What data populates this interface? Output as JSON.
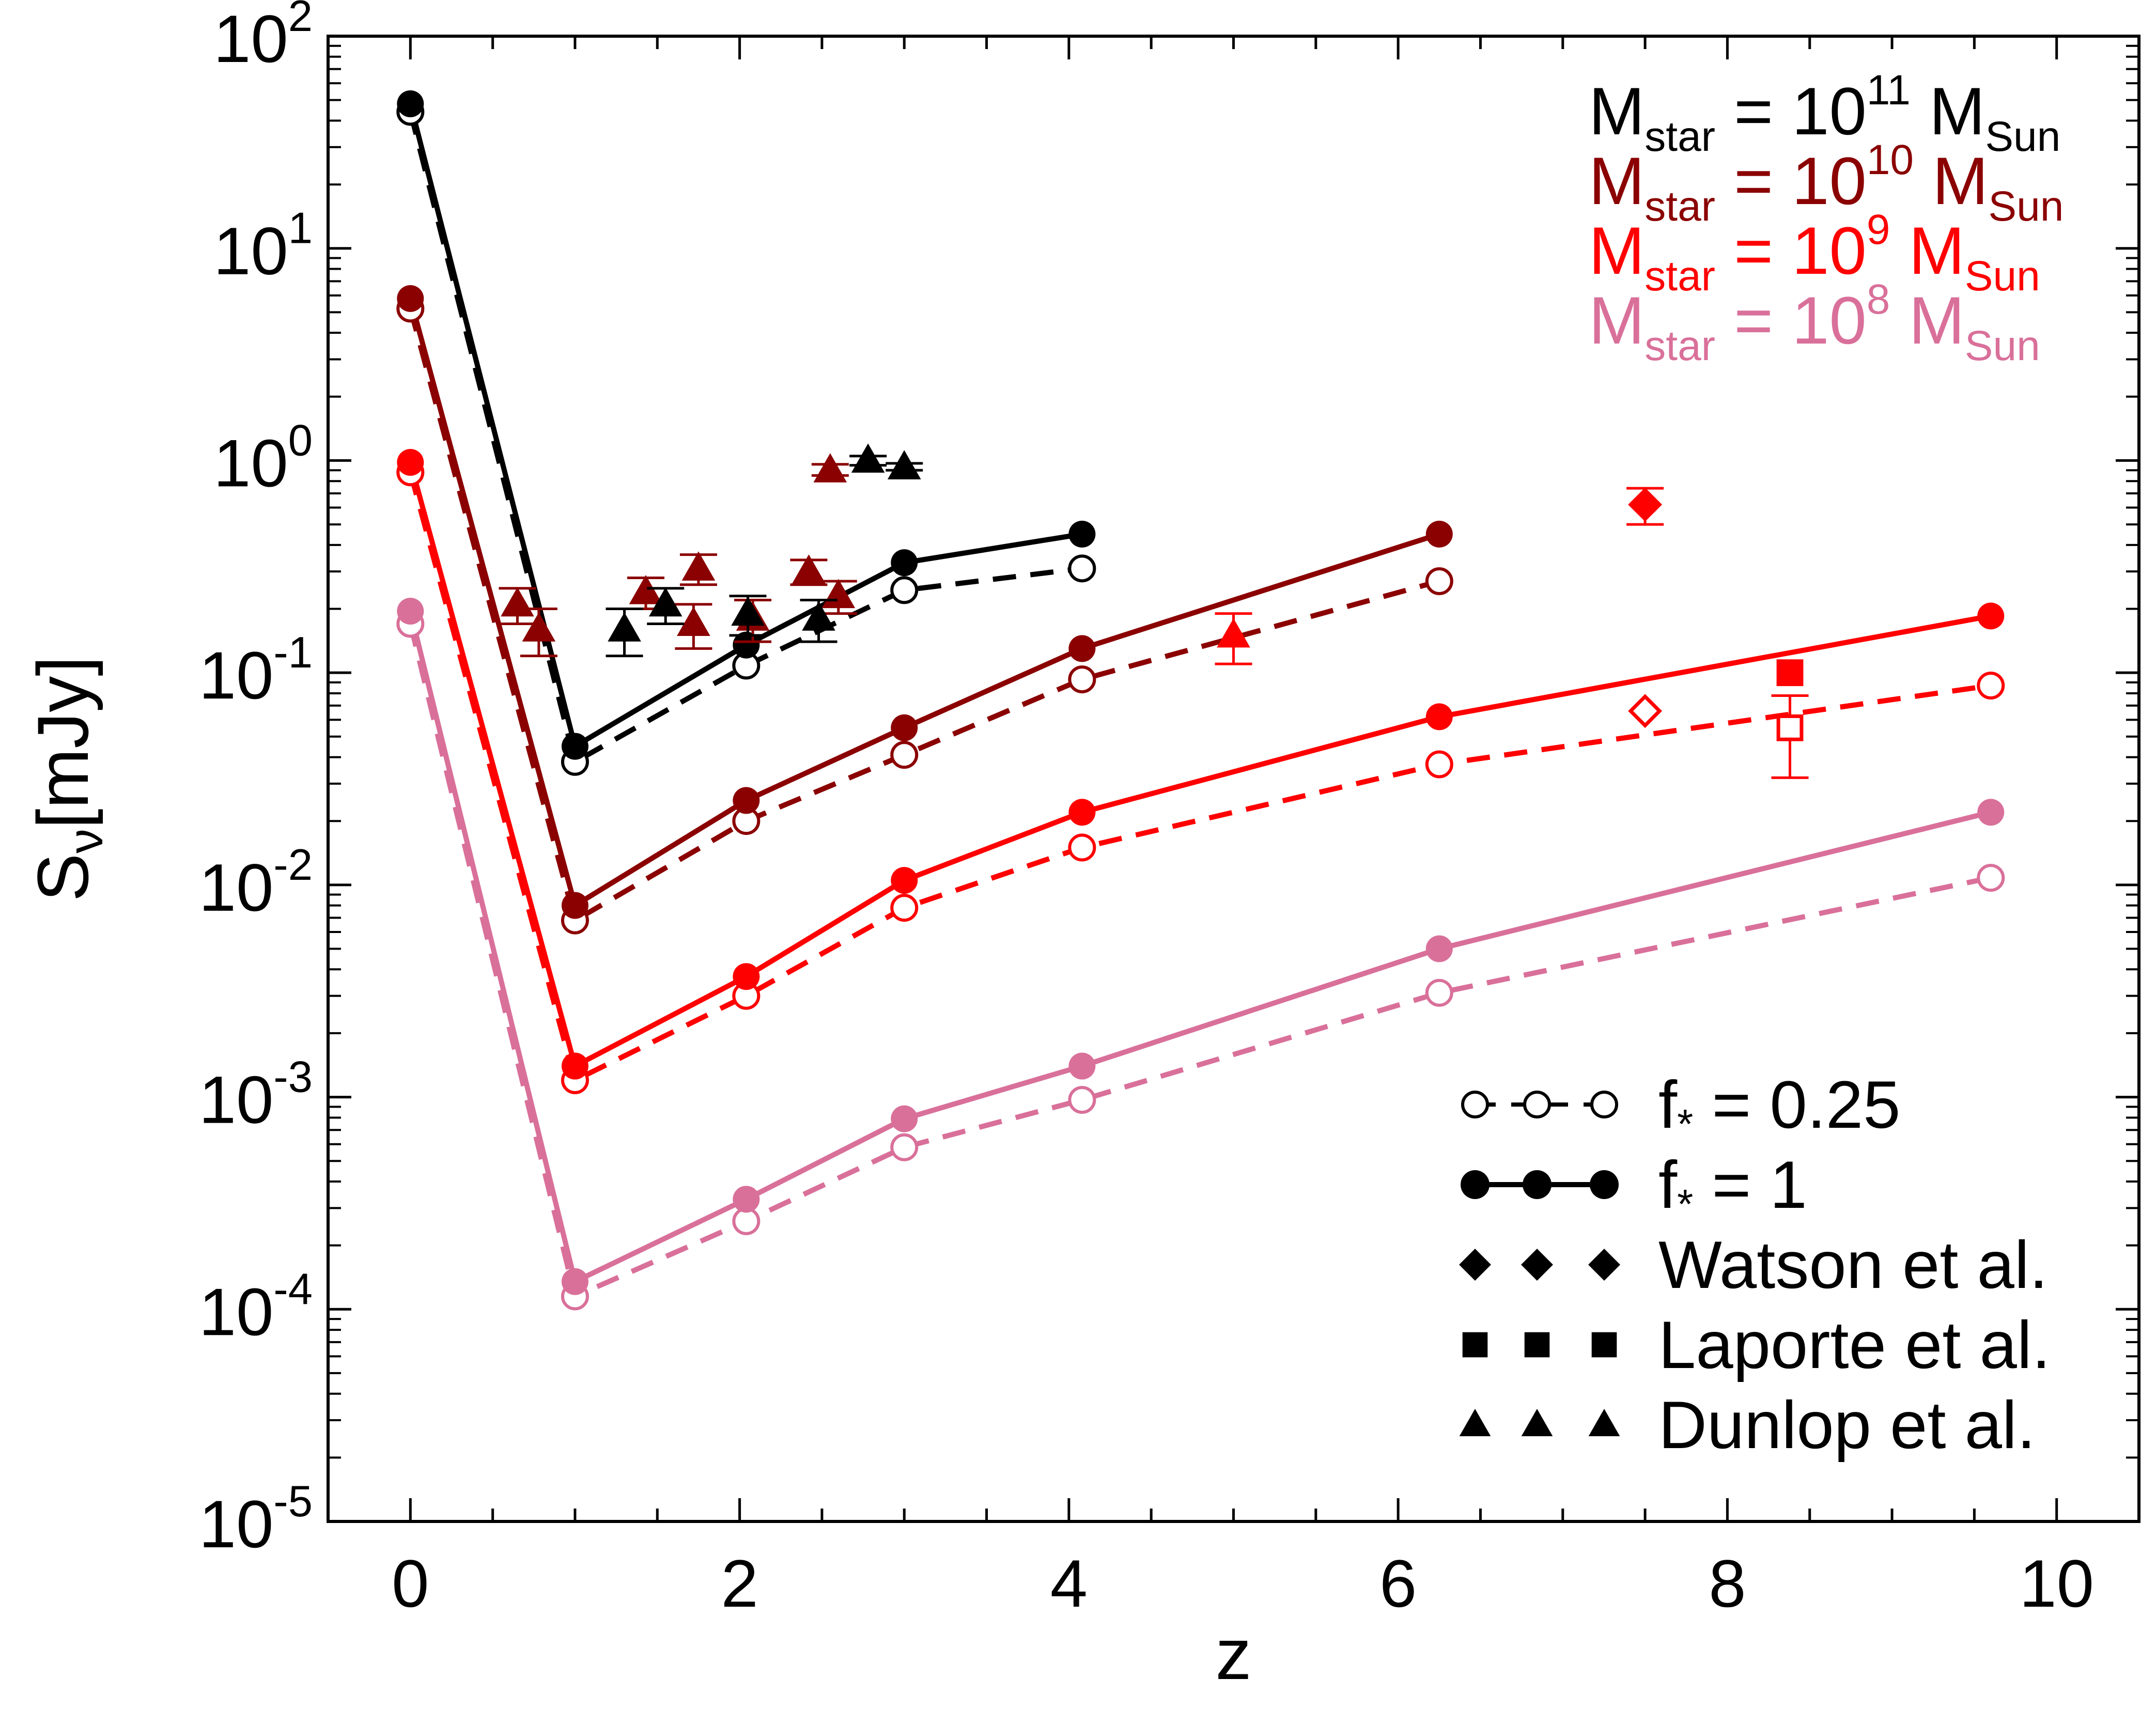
{
  "chart_data": {
    "type": "line",
    "xlabel": "z",
    "ylabel": {
      "main": "S",
      "sub": "ν",
      "rest": "[mJy]"
    },
    "xlim": [
      -0.5,
      10.5
    ],
    "ylim": [
      1e-05,
      100
    ],
    "yscale": "log",
    "x_ticks": [
      0,
      2,
      4,
      6,
      8,
      10
    ],
    "y_ticks": [
      {
        "value": 100,
        "base": "10",
        "exp": "2"
      },
      {
        "value": 10,
        "base": "10",
        "exp": "1"
      },
      {
        "value": 1,
        "base": "10",
        "exp": "0"
      },
      {
        "value": 0.1,
        "base": "10",
        "exp": "-1"
      },
      {
        "value": 0.01,
        "base": "10",
        "exp": "-2"
      },
      {
        "value": 0.001,
        "base": "10",
        "exp": "-3"
      },
      {
        "value": 0.0001,
        "base": "10",
        "exp": "-4"
      },
      {
        "value": 1e-05,
        "base": "10",
        "exp": "-5"
      }
    ],
    "mass_series": [
      {
        "id": "m11",
        "color": "#000000",
        "label": {
          "M": "M",
          "sub1": "star",
          "eq": " = 10",
          "exp": "11",
          "M2": " M",
          "sub2": "Sun"
        },
        "x": [
          0,
          1,
          2.04,
          3,
          4.08
        ],
        "f1": [
          48,
          0.045,
          0.135,
          0.33,
          0.45
        ],
        "f025": [
          44,
          0.038,
          0.108,
          0.245,
          0.31
        ]
      },
      {
        "id": "m10",
        "color": "#8b0000",
        "label": {
          "M": "M",
          "sub1": "star",
          "eq": " = 10",
          "exp": "10",
          "M2": " M",
          "sub2": "Sun"
        },
        "x": [
          0,
          1,
          2.04,
          3,
          4.08,
          6.25
        ],
        "f1": [
          5.8,
          0.008,
          0.025,
          0.055,
          0.13,
          0.45
        ],
        "f025": [
          5.2,
          0.0068,
          0.02,
          0.041,
          0.093,
          0.27
        ]
      },
      {
        "id": "m9",
        "color": "#ff0000",
        "label": {
          "M": "M",
          "sub1": "star",
          "eq": " = 10",
          "exp": "9",
          "M2": " M",
          "sub2": "Sun"
        },
        "x": [
          0,
          1,
          2.04,
          3,
          4.08,
          6.25,
          9.6
        ],
        "f1": [
          0.98,
          0.0014,
          0.0037,
          0.0105,
          0.022,
          0.062,
          0.185
        ],
        "f025": [
          0.88,
          0.0012,
          0.003,
          0.0078,
          0.015,
          0.037,
          0.087
        ]
      },
      {
        "id": "m8",
        "color": "#d9709a",
        "label": {
          "M": "M",
          "sub1": "star",
          "eq": " = 10",
          "exp": "8",
          "M2": " M",
          "sub2": "Sun"
        },
        "x": [
          0,
          1,
          2.04,
          3,
          4.08,
          6.25,
          9.6
        ],
        "f1": [
          0.195,
          0.000135,
          0.00033,
          0.00079,
          0.0014,
          0.005,
          0.022
        ],
        "f025": [
          0.17,
          0.000115,
          0.00026,
          0.00058,
          0.00097,
          0.0031,
          0.0108
        ]
      }
    ],
    "observations": [
      {
        "set": "dunlop",
        "marker": "triangle",
        "filled": true,
        "color": "#8b0000",
        "x": 0.65,
        "y": 0.21,
        "yerr": [
          0.17,
          0.25
        ]
      },
      {
        "set": "dunlop",
        "marker": "triangle",
        "filled": true,
        "color": "#8b0000",
        "x": 0.78,
        "y": 0.16,
        "yerr": [
          0.12,
          0.2
        ]
      },
      {
        "set": "dunlop",
        "marker": "triangle",
        "filled": true,
        "color": "#8b0000",
        "x": 1.43,
        "y": 0.24,
        "yerr": [
          0.2,
          0.28
        ]
      },
      {
        "set": "dunlop",
        "marker": "triangle",
        "filled": true,
        "color": "#8b0000",
        "x": 1.75,
        "y": 0.31,
        "yerr": [
          0.26,
          0.36
        ]
      },
      {
        "set": "dunlop",
        "marker": "triangle",
        "filled": true,
        "color": "#8b0000",
        "x": 1.72,
        "y": 0.17,
        "yerr": [
          0.13,
          0.21
        ]
      },
      {
        "set": "dunlop",
        "marker": "triangle",
        "filled": true,
        "color": "#8b0000",
        "x": 2.08,
        "y": 0.18,
        "yerr": [
          0.14,
          0.22
        ]
      },
      {
        "set": "dunlop",
        "marker": "triangle",
        "filled": true,
        "color": "#8b0000",
        "x": 2.42,
        "y": 0.3,
        "yerr": [
          0.26,
          0.34
        ]
      },
      {
        "set": "dunlop",
        "marker": "triangle",
        "filled": true,
        "color": "#8b0000",
        "x": 2.6,
        "y": 0.23,
        "yerr": [
          0.19,
          0.27
        ]
      },
      {
        "set": "dunlop",
        "marker": "triangle",
        "filled": true,
        "color": "#8b0000",
        "x": 2.55,
        "y": 0.9,
        "yerr": [
          0.85,
          0.96
        ]
      },
      {
        "set": "dunlop",
        "marker": "triangle",
        "filled": true,
        "color": "#000000",
        "x": 1.3,
        "y": 0.16,
        "yerr": [
          0.12,
          0.2
        ]
      },
      {
        "set": "dunlop",
        "marker": "triangle",
        "filled": true,
        "color": "#000000",
        "x": 1.55,
        "y": 0.21,
        "yerr": [
          0.17,
          0.25
        ]
      },
      {
        "set": "dunlop",
        "marker": "triangle",
        "filled": true,
        "color": "#000000",
        "x": 2.05,
        "y": 0.19,
        "yerr": [
          0.15,
          0.23
        ]
      },
      {
        "set": "dunlop",
        "marker": "triangle",
        "filled": true,
        "color": "#000000",
        "x": 2.48,
        "y": 0.18,
        "yerr": [
          0.14,
          0.22
        ]
      },
      {
        "set": "dunlop",
        "marker": "triangle",
        "filled": true,
        "color": "#000000",
        "x": 2.78,
        "y": 1.0,
        "yerr": [
          0.95,
          1.05
        ]
      },
      {
        "set": "dunlop",
        "marker": "triangle",
        "filled": true,
        "color": "#000000",
        "x": 3.0,
        "y": 0.93,
        "yerr": [
          0.9,
          0.97
        ]
      },
      {
        "set": "dunlop",
        "marker": "triangle",
        "filled": true,
        "color": "#ff0000",
        "x": 5.0,
        "y": 0.15,
        "yerr": [
          0.11,
          0.19
        ]
      },
      {
        "set": "watson",
        "marker": "diamond",
        "filled": true,
        "color": "#ff0000",
        "x": 7.5,
        "y": 0.62,
        "yerr": [
          0.5,
          0.74
        ]
      },
      {
        "set": "watson",
        "marker": "diamond",
        "filled": false,
        "color": "#ff0000",
        "x": 7.5,
        "y": 0.066,
        "yerr": null
      },
      {
        "set": "laporte",
        "marker": "square",
        "filled": true,
        "color": "#ff0000",
        "x": 8.38,
        "y": 0.1,
        "yerr": null
      },
      {
        "set": "laporte",
        "marker": "square",
        "filled": false,
        "color": "#ff0000",
        "x": 8.38,
        "y": 0.055,
        "yerr": [
          0.032,
          0.078
        ]
      }
    ],
    "legend": {
      "position": "bottom-right",
      "items": [
        {
          "style": "dashed-open",
          "label_main": "f",
          "label_sub": "*",
          "label_rest": " = 0.25"
        },
        {
          "style": "solid-filled",
          "label_main": "f",
          "label_sub": "*",
          "label_rest": " = 1"
        },
        {
          "style": "diamond",
          "label_main": "Watson et al.",
          "label_sub": "",
          "label_rest": ""
        },
        {
          "style": "square",
          "label_main": "Laporte et al.",
          "label_sub": "",
          "label_rest": ""
        },
        {
          "style": "triangle",
          "label_main": "Dunlop et al.",
          "label_sub": "",
          "label_rest": ""
        }
      ]
    }
  }
}
